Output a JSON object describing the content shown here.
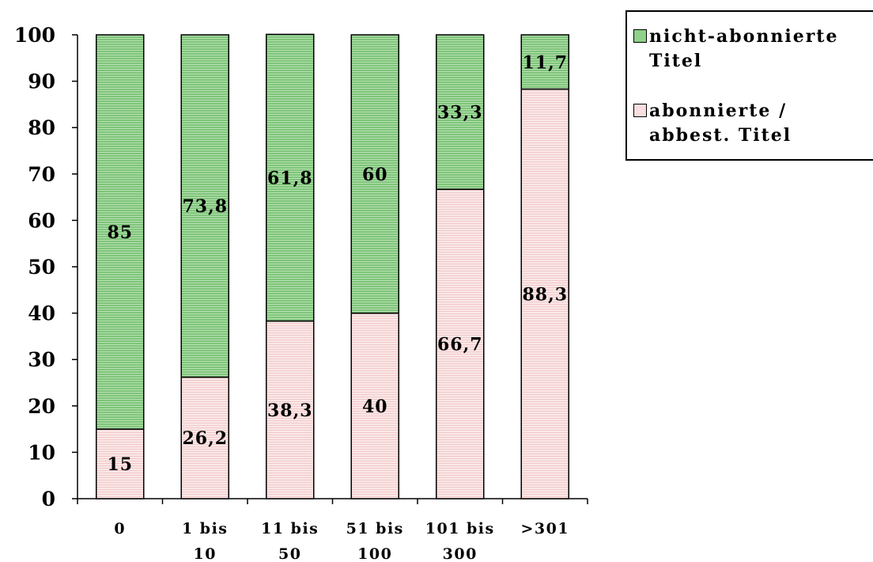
{
  "chart_data": {
    "type": "bar",
    "stacked": true,
    "categories": [
      "0",
      "1 bis\n10",
      "11 bis\n50",
      "51 bis\n100",
      "101 bis\n300",
      ">301"
    ],
    "series": [
      {
        "name": "abonnierte /\nabbest. Titel",
        "values": [
          15,
          26.2,
          38.3,
          40,
          66.7,
          88.3
        ],
        "labels": [
          "15",
          "26,2",
          "38,3",
          "40",
          "66,7",
          "88,3"
        ],
        "color": "#f8dede"
      },
      {
        "name": "nicht-abonnierte\nTitel",
        "values": [
          85,
          73.8,
          61.8,
          60,
          33.3,
          11.7
        ],
        "labels": [
          "85",
          "73,8",
          "61,8",
          "60",
          "33,3",
          "11,7"
        ],
        "color": "#8fd08a"
      }
    ],
    "ylim": [
      0,
      100
    ],
    "yticks": [
      0,
      10,
      20,
      30,
      40,
      50,
      60,
      70,
      80,
      90,
      100
    ],
    "grid": false,
    "legend_position": "top-right",
    "title": "",
    "xlabel": "",
    "ylabel": ""
  }
}
